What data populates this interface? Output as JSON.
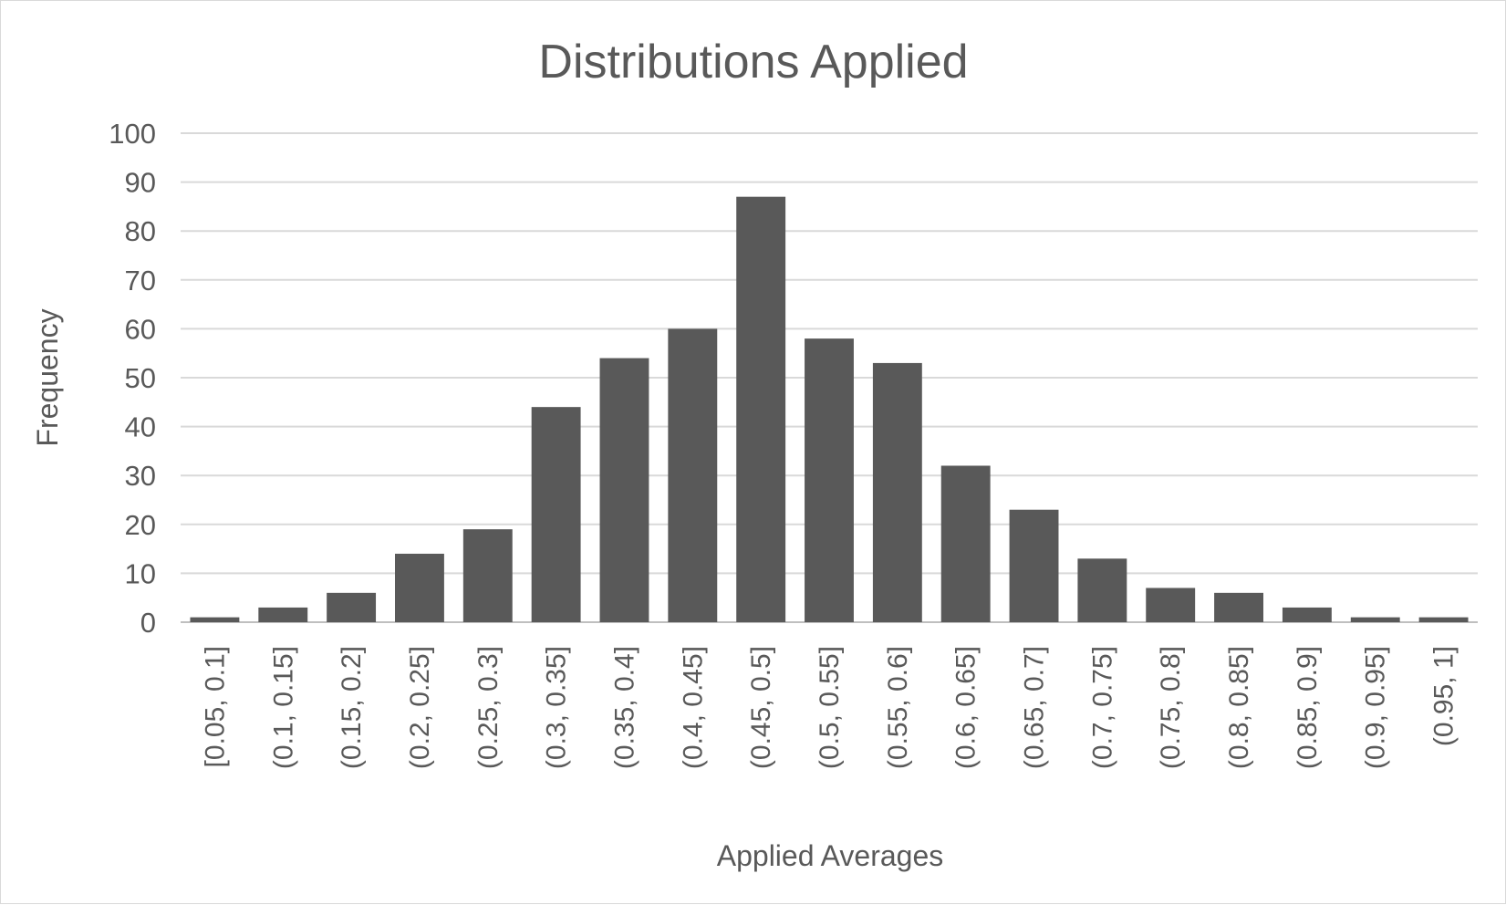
{
  "chart_data": {
    "type": "bar",
    "title": "Distributions Applied",
    "xlabel": "Applied Averages",
    "ylabel": "Frequency",
    "ylim": [
      0,
      100
    ],
    "yticks": [
      0,
      10,
      20,
      30,
      40,
      50,
      60,
      70,
      80,
      90,
      100
    ],
    "grid": true,
    "legend": "none",
    "bar_color": "#595959",
    "gridline_color": "#d9d9d9",
    "text_color": "#595959",
    "categories": [
      "[0.05, 0.1]",
      "(0.1, 0.15]",
      "(0.15, 0.2]",
      "(0.2, 0.25]",
      "(0.25, 0.3]",
      "(0.3, 0.35]",
      "(0.35, 0.4]",
      "(0.4, 0.45]",
      "(0.45, 0.5]",
      "(0.5, 0.55]",
      "(0.55, 0.6]",
      "(0.6, 0.65]",
      "(0.65, 0.7]",
      "(0.7, 0.75]",
      "(0.75, 0.8]",
      "(0.8, 0.85]",
      "(0.85, 0.9]",
      "(0.9, 0.95]",
      "(0.95, 1]"
    ],
    "values": [
      1,
      3,
      6,
      14,
      19,
      44,
      54,
      60,
      87,
      58,
      53,
      32,
      23,
      13,
      7,
      6,
      3,
      1,
      1
    ]
  }
}
